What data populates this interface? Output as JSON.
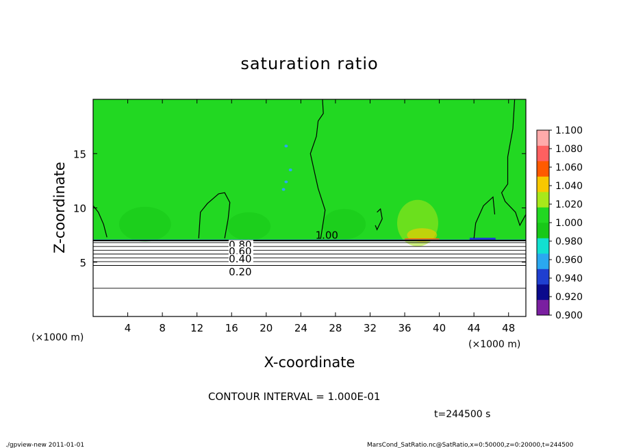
{
  "chart_data": {
    "type": "heatmap",
    "title": "saturation ratio",
    "xlabel": "X-coordinate",
    "ylabel": "Z-coordinate",
    "x_unit_left": "(×1000 m)",
    "x_unit_right": "(×1000 m)",
    "xlim": [
      0,
      50
    ],
    "ylim": [
      0,
      20
    ],
    "x_ticks": [
      4,
      8,
      12,
      16,
      20,
      24,
      28,
      32,
      36,
      40,
      44,
      48
    ],
    "y_ticks": [
      5,
      10,
      15
    ],
    "colorbar": {
      "levels": [
        0.9,
        0.92,
        0.94,
        0.96,
        0.98,
        1.0,
        1.02,
        1.04,
        1.06,
        1.08,
        1.1
      ],
      "labels": [
        "0.900",
        "0.920",
        "0.940",
        "0.960",
        "0.980",
        "1.000",
        "1.020",
        "1.040",
        "1.060",
        "1.080",
        "1.100"
      ],
      "colors": [
        "#7a1fa0",
        "#0a0a8c",
        "#1f3fd0",
        "#2aa8f0",
        "#12e0d0",
        "#18c818",
        "#22d822",
        "#a8e81a",
        "#f8c800",
        "#ff5a00",
        "#ff6060",
        "#ffaaaa"
      ]
    },
    "background_value_color": "#22d822",
    "saturation_base_height": 7.0,
    "contours": [
      {
        "value": 1.0,
        "label": "1.00",
        "label_x": 27.0
      },
      {
        "value": 0.8,
        "label": "0.80",
        "label_x": 17.0,
        "z": 6.6
      },
      {
        "value": 0.6,
        "label": "0.60",
        "label_x": 17.0,
        "z": 6.0
      },
      {
        "value": 0.4,
        "label": "0.40",
        "label_x": 17.0,
        "z": 5.3
      },
      {
        "value": 0.2,
        "label": "0.20",
        "label_x": 17.0,
        "z": 4.1
      }
    ],
    "contour_interval_text": "CONTOUR INTERVAL = 1.000E-01",
    "time_text": "t=244500 s"
  },
  "footer": {
    "left": "./gpview-new  2011-01-01",
    "right": "MarsCond_SatRatio.nc@SatRatio,x=0:50000,z=0:20000,t=244500"
  }
}
